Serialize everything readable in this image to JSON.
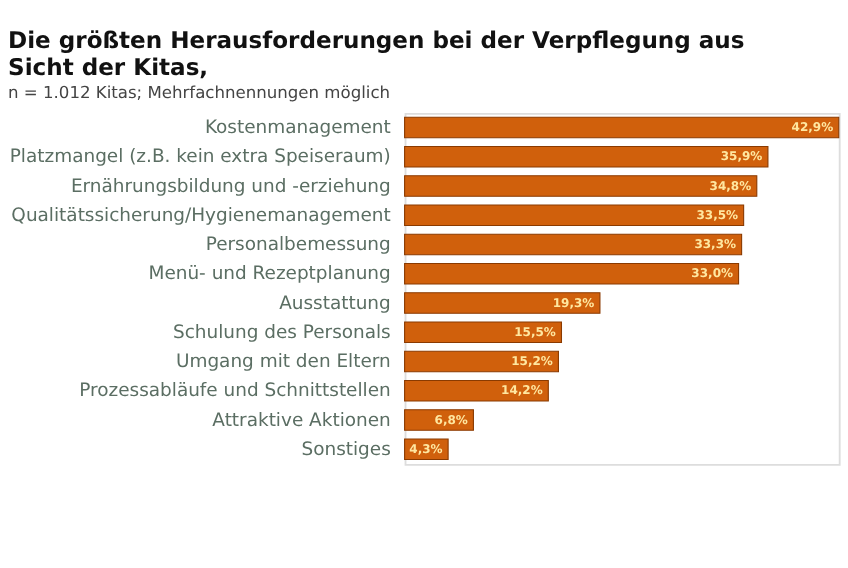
{
  "chart_data": {
    "type": "bar",
    "orientation": "horizontal",
    "title": "Die größten Herausforderungen bei der Verpflegung aus Sicht der Kitas,",
    "subtitle": "n = 1.012 Kitas; Mehrfachnennungen möglich",
    "categories": [
      "Kostenmanagement",
      "Platzmangel (z.B. kein extra Speiseraum)",
      "Ernährungsbildung und -erziehung",
      "Qualitätssicherung/Hygienemanagement",
      "Personalbemessung",
      "Menü- und Rezeptplanung",
      "Ausstattung",
      "Schulung des Personals",
      "Umgang mit den Eltern",
      "Prozessabläufe und Schnittstellen",
      "Attraktive Aktionen",
      "Sonstiges"
    ],
    "values": [
      42.9,
      35.9,
      34.8,
      33.5,
      33.3,
      33.0,
      19.3,
      15.5,
      15.2,
      14.2,
      6.8,
      4.3
    ],
    "value_labels": [
      "42,9%",
      "35,9%",
      "34,8%",
      "33,5%",
      "33,3%",
      "33,0%",
      "19,3%",
      "15,5%",
      "15,2%",
      "14,2%",
      "6,8%",
      "4,3%"
    ],
    "color": "#d0600c",
    "grid": false
  }
}
